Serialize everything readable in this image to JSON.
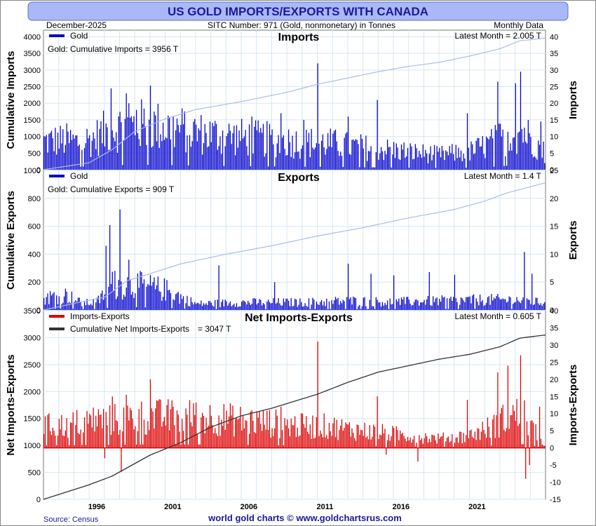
{
  "title": "US GOLD IMPORTS/EXPORTS WITH CANADA",
  "header": {
    "date": "December-2025",
    "subtitle": "SITC Number: 971 (Gold, nonmonetary) in Tonnes",
    "frequency": "Monthly Data"
  },
  "footer": {
    "source": "Source: Census",
    "credit": "world gold charts © www.goldchartsrus.com"
  },
  "colors": {
    "title_bg": "#aab8f8",
    "title_text": "#1a1a9a",
    "panel_bg": "#ffffff",
    "grid": "#d6e7f2",
    "imports_bar": "#0000cc",
    "cum_line": "#aabbf0",
    "net_bar": "#dd0000",
    "net_cum_line": "#333333"
  },
  "chart_data": [
    {
      "type": "bar",
      "name": "imports-panel",
      "title": "Imports",
      "legend": "Gold",
      "annotation": "Gold: Cumulative Imports = 3956 T",
      "latest": "Latest Month = 2.005 T",
      "ylabel_left": "Cumulative Imports",
      "ylabel_right": "Imports",
      "left_ticks": [
        "0",
        "500",
        "1000",
        "1500",
        "2000",
        "2500",
        "3000",
        "3500",
        "4000"
      ],
      "right_ticks": [
        "0",
        "5",
        "10",
        "15",
        "20",
        "25",
        "30",
        "35",
        "40"
      ],
      "ylim_left": [
        0,
        4200
      ],
      "ylim_right": [
        0,
        42
      ],
      "cumulative": [
        [
          1993.0,
          0
        ],
        [
          1996,
          210
        ],
        [
          1997.5,
          600
        ],
        [
          1999,
          1150
        ],
        [
          2001,
          1530
        ],
        [
          2003,
          1810
        ],
        [
          2006,
          2050
        ],
        [
          2009,
          2330
        ],
        [
          2011,
          2570
        ],
        [
          2013,
          2760
        ],
        [
          2015,
          2950
        ],
        [
          2017,
          3110
        ],
        [
          2019,
          3230
        ],
        [
          2021,
          3420
        ],
        [
          2023,
          3640
        ],
        [
          2024.3,
          3880
        ],
        [
          2025.9,
          3956
        ]
      ],
      "monthly_profile": [
        [
          1993.0,
          9.5
        ],
        [
          1994.5,
          9.8
        ],
        [
          1995.2,
          9.2
        ],
        [
          1996.3,
          10.5
        ],
        [
          1997.5,
          14
        ],
        [
          1999.5,
          15
        ],
        [
          2001.5,
          14
        ],
        [
          2003.5,
          12
        ],
        [
          2005.5,
          11
        ],
        [
          2008,
          10
        ],
        [
          2010,
          9
        ],
        [
          2011.5,
          9
        ],
        [
          2013,
          8
        ],
        [
          2015,
          7
        ],
        [
          2017,
          6
        ],
        [
          2019,
          5
        ],
        [
          2021,
          6
        ],
        [
          2022.5,
          9
        ],
        [
          2023.5,
          12
        ],
        [
          2024.5,
          13
        ],
        [
          2025.9,
          6
        ]
      ],
      "spikes": [
        [
          1997.4,
          24.5
        ],
        [
          1998.4,
          23
        ],
        [
          1998.6,
          20
        ],
        [
          1999.1,
          18
        ],
        [
          2000.0,
          25.3
        ],
        [
          2001.5,
          16
        ],
        [
          2006.7,
          16
        ],
        [
          2008.6,
          17
        ],
        [
          2010.1,
          15
        ],
        [
          2011.0,
          32
        ],
        [
          2013.0,
          16
        ],
        [
          2014.9,
          21
        ],
        [
          2020.8,
          17
        ],
        [
          2022.8,
          26.5
        ],
        [
          2024.0,
          26
        ],
        [
          2024.3,
          29.5
        ],
        [
          2025.7,
          14.5
        ]
      ],
      "latest_value": 2.005,
      "x_ticks": [
        "1996",
        "2001",
        "2006",
        "2011",
        "2016",
        "2021"
      ]
    },
    {
      "type": "bar",
      "name": "exports-panel",
      "title": "Exports",
      "legend": "Gold",
      "annotation": "Gold: Cumulative Exports = 909 T",
      "latest": "Latest Month = 1.4 T",
      "ylabel_left": "Cumulative Exports",
      "ylabel_right": "Exports",
      "left_ticks": [
        "0",
        "200",
        "400",
        "600",
        "800",
        "1000"
      ],
      "right_ticks": [
        "0",
        "5",
        "10",
        "15",
        "20",
        "25"
      ],
      "ylim_left": [
        0,
        1000
      ],
      "ylim_right": [
        0,
        25
      ],
      "cumulative": [
        [
          1993.0,
          0
        ],
        [
          1996,
          70
        ],
        [
          1997,
          90
        ],
        [
          1998.5,
          210
        ],
        [
          2000,
          260
        ],
        [
          2002,
          330
        ],
        [
          2005,
          400
        ],
        [
          2008,
          460
        ],
        [
          2011,
          530
        ],
        [
          2014,
          590
        ],
        [
          2017,
          660
        ],
        [
          2020,
          720
        ],
        [
          2022,
          780
        ],
        [
          2023.5,
          840
        ],
        [
          2025.9,
          909
        ]
      ],
      "monthly_profile": [
        [
          1993.0,
          2.5
        ],
        [
          1994.5,
          3.0
        ],
        [
          1995.5,
          1.3
        ],
        [
          1996.5,
          1.6
        ],
        [
          1997.5,
          5
        ],
        [
          1999,
          5
        ],
        [
          2001,
          4
        ],
        [
          2003,
          1.2
        ],
        [
          2006,
          1.5
        ],
        [
          2010,
          1.5
        ],
        [
          2013,
          1.8
        ],
        [
          2016,
          1.6
        ],
        [
          2019,
          1.8
        ],
        [
          2022,
          2.0
        ],
        [
          2024,
          2.0
        ],
        [
          2025.9,
          1.4
        ]
      ],
      "spikes": [
        [
          1997.1,
          11.5
        ],
        [
          1997.3,
          15.2
        ],
        [
          1997.7,
          7
        ],
        [
          1998.0,
          18
        ],
        [
          1998.6,
          9
        ],
        [
          2004.5,
          8
        ],
        [
          2008.2,
          5
        ],
        [
          2013.0,
          8.3
        ],
        [
          2014.5,
          6.5
        ],
        [
          2016.0,
          6.2
        ],
        [
          2018.3,
          6.8
        ],
        [
          2020.0,
          6.3
        ],
        [
          2024.6,
          10.4
        ],
        [
          2025.1,
          6.5
        ]
      ],
      "latest_value": 1.4,
      "x_ticks": [
        "1996",
        "2001",
        "2006",
        "2011",
        "2016",
        "2021"
      ]
    },
    {
      "type": "bar",
      "name": "net-panel",
      "title": "Net Imports-Exports",
      "legend": "Imports-Exports",
      "legend2": "Cumulative Net Imports-Exports",
      "annotation": "= 3047 T",
      "latest": "Latest Month = 0.605 T",
      "ylabel_left": "Net Imports-Exports",
      "ylabel_right": "Imports-Exports",
      "left_ticks": [
        "0",
        "500",
        "1000",
        "1500",
        "2000",
        "2500",
        "3000",
        "3500"
      ],
      "right_ticks": [
        "-15",
        "-10",
        "-5",
        "0",
        "5",
        "10",
        "15",
        "20",
        "25",
        "30",
        "35",
        "40"
      ],
      "ylim_left": [
        0,
        3500
      ],
      "ylim_right": [
        -15,
        40
      ],
      "cumulative": [
        [
          1993.0,
          0
        ],
        [
          1996,
          270
        ],
        [
          1997.5,
          430
        ],
        [
          2000,
          820
        ],
        [
          2002,
          1050
        ],
        [
          2004,
          1340
        ],
        [
          2006,
          1550
        ],
        [
          2008,
          1690
        ],
        [
          2011,
          1950
        ],
        [
          2013,
          2170
        ],
        [
          2015,
          2360
        ],
        [
          2017,
          2480
        ],
        [
          2019,
          2600
        ],
        [
          2021,
          2690
        ],
        [
          2023,
          2830
        ],
        [
          2024.3,
          2990
        ],
        [
          2025.9,
          3047
        ]
      ],
      "monthly_profile": [
        [
          1993.0,
          7
        ],
        [
          1994.5,
          7.3
        ],
        [
          1995.2,
          8
        ],
        [
          1996.3,
          9
        ],
        [
          1997.5,
          9
        ],
        [
          1999.5,
          10
        ],
        [
          2001.5,
          10
        ],
        [
          2003.5,
          10
        ],
        [
          2005.5,
          9
        ],
        [
          2008,
          8
        ],
        [
          2010,
          7
        ],
        [
          2011.5,
          7
        ],
        [
          2013,
          6
        ],
        [
          2015,
          5
        ],
        [
          2017,
          4
        ],
        [
          2019,
          3
        ],
        [
          2021,
          4
        ],
        [
          2022.5,
          7
        ],
        [
          2023.5,
          10
        ],
        [
          2024.5,
          11
        ],
        [
          2025.9,
          0.6
        ]
      ],
      "spikes": [
        [
          1997.5,
          15
        ],
        [
          1998.4,
          15.5
        ],
        [
          2000.0,
          20
        ],
        [
          2001.5,
          12
        ],
        [
          2002.8,
          13
        ],
        [
          2006.7,
          11
        ],
        [
          2008.6,
          12
        ],
        [
          2011.0,
          31
        ],
        [
          2014.9,
          15
        ],
        [
          2020.8,
          14
        ],
        [
          2022.8,
          22
        ],
        [
          2023.5,
          24
        ],
        [
          2024.3,
          27
        ],
        [
          2025.6,
          12
        ]
      ],
      "negatives": [
        [
          1997.0,
          -3
        ],
        [
          1998.1,
          -7
        ],
        [
          2015.5,
          -2
        ],
        [
          2017.6,
          -4
        ],
        [
          2024.7,
          -9
        ],
        [
          2024.9,
          -5
        ]
      ],
      "latest_value": 0.605,
      "x_ticks": [
        "1996",
        "2001",
        "2006",
        "2011",
        "2016",
        "2021"
      ]
    }
  ]
}
